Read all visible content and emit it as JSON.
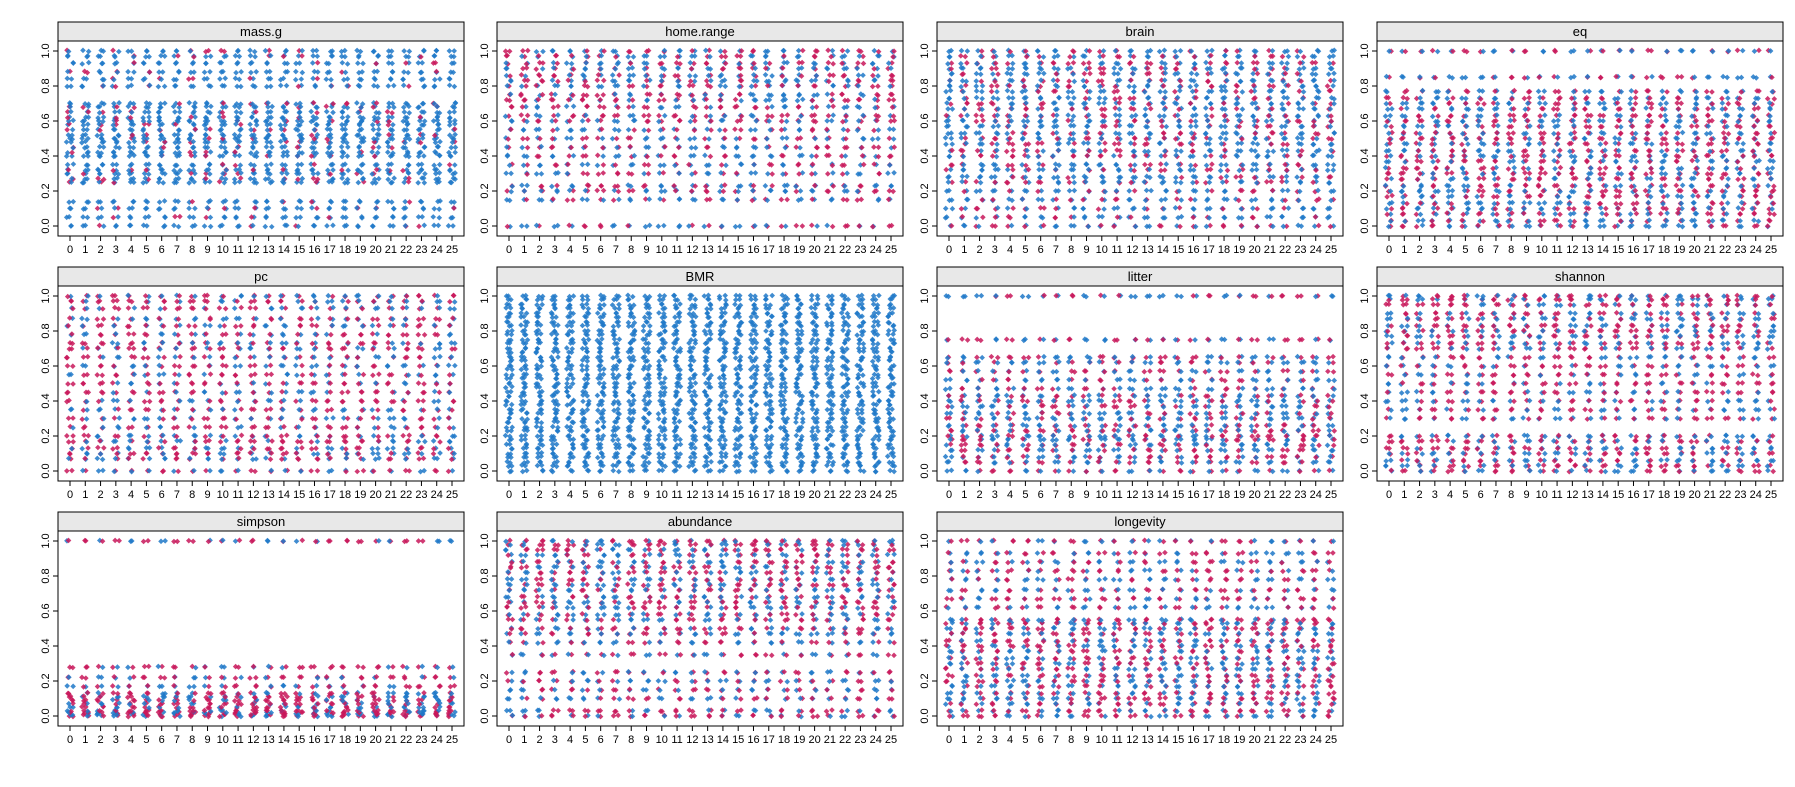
{
  "colors": {
    "background": "#ffffff",
    "strip": "#e8e8e8",
    "blue_points": "#1f78c8",
    "red_points": "#c8185a"
  },
  "chart_data": {
    "type": "scatter",
    "layout": "lattice stripplot, 3 rows x 4 columns (11 panels)",
    "xlabel": "",
    "ylabel": "",
    "x_categories": [
      "0",
      "1",
      "2",
      "3",
      "4",
      "5",
      "6",
      "7",
      "8",
      "9",
      "10",
      "11",
      "12",
      "13",
      "14",
      "15",
      "16",
      "17",
      "18",
      "19",
      "20",
      "21",
      "22",
      "23",
      "24",
      "25"
    ],
    "y_ticks": [
      "0.0",
      "0.2",
      "0.4",
      "0.6",
      "0.8",
      "1.0"
    ],
    "ylim": [
      0,
      1
    ],
    "grid": false,
    "legend": "none",
    "panels": [
      {
        "title": "mass.g",
        "levels": [
          0,
          0.05,
          0.1,
          0.14,
          0.25,
          0.27,
          0.3,
          0.32,
          0.35,
          0.4,
          0.42,
          0.45,
          0.48,
          0.5,
          0.52,
          0.55,
          0.58,
          0.6,
          0.62,
          0.65,
          0.68,
          0.7,
          0.8,
          0.84,
          0.88,
          0.93,
          0.97,
          1.0
        ],
        "red_share": 0.15
      },
      {
        "title": "home.range",
        "levels": [
          0,
          0.15,
          0.2,
          0.23,
          0.3,
          0.35,
          0.4,
          0.45,
          0.5,
          0.55,
          0.6,
          0.63,
          0.68,
          0.72,
          0.75,
          0.8,
          0.83,
          0.86,
          0.9,
          0.93,
          0.97,
          1.0
        ],
        "red_share": 0.5
      },
      {
        "title": "brain",
        "levels": [
          0,
          0.05,
          0.1,
          0.15,
          0.2,
          0.25,
          0.28,
          0.32,
          0.35,
          0.4,
          0.43,
          0.47,
          0.5,
          0.53,
          0.57,
          0.6,
          0.63,
          0.67,
          0.7,
          0.73,
          0.77,
          0.8,
          0.83,
          0.87,
          0.9,
          0.93,
          0.97,
          1.0
        ],
        "red_share": 0.35
      },
      {
        "title": "eq",
        "levels": [
          0,
          0.03,
          0.07,
          0.1,
          0.13,
          0.17,
          0.2,
          0.23,
          0.27,
          0.3,
          0.33,
          0.37,
          0.4,
          0.43,
          0.47,
          0.5,
          0.53,
          0.57,
          0.6,
          0.63,
          0.67,
          0.7,
          0.73,
          0.77,
          0.85,
          1.0
        ],
        "red_share": 0.5
      },
      {
        "title": "pc",
        "levels": [
          0,
          0.07,
          0.1,
          0.13,
          0.17,
          0.2,
          0.25,
          0.3,
          0.35,
          0.4,
          0.45,
          0.5,
          0.55,
          0.6,
          0.65,
          0.7,
          0.73,
          0.78,
          0.83,
          0.87,
          0.93,
          0.97,
          1.0
        ],
        "red_share": 0.55
      },
      {
        "title": "BMR",
        "levels": [
          0,
          0.03,
          0.05,
          0.08,
          0.1,
          0.13,
          0.15,
          0.18,
          0.2,
          0.23,
          0.25,
          0.28,
          0.3,
          0.33,
          0.35,
          0.38,
          0.4,
          0.43,
          0.45,
          0.48,
          0.5,
          0.53,
          0.55,
          0.58,
          0.6,
          0.63,
          0.65,
          0.68,
          0.7,
          0.73,
          0.75,
          0.78,
          0.8,
          0.83,
          0.85,
          0.88,
          0.9,
          0.93,
          0.95,
          0.98,
          1.0
        ],
        "red_share": 0.0
      },
      {
        "title": "litter",
        "levels": [
          0,
          0.05,
          0.08,
          0.12,
          0.15,
          0.18,
          0.2,
          0.23,
          0.26,
          0.3,
          0.33,
          0.37,
          0.4,
          0.43,
          0.47,
          0.52,
          0.57,
          0.62,
          0.65,
          0.75,
          1.0
        ],
        "red_share": 0.45
      },
      {
        "title": "shannon",
        "levels": [
          0,
          0.03,
          0.06,
          0.1,
          0.13,
          0.17,
          0.2,
          0.3,
          0.35,
          0.4,
          0.45,
          0.5,
          0.55,
          0.6,
          0.65,
          0.7,
          0.73,
          0.77,
          0.8,
          0.83,
          0.87,
          0.9,
          0.95,
          0.98,
          1.0
        ],
        "red_share": 0.55
      },
      {
        "title": "simpson",
        "levels": [
          0,
          0.01,
          0.02,
          0.03,
          0.05,
          0.07,
          0.09,
          0.11,
          0.13,
          0.17,
          0.22,
          0.28,
          1.0
        ],
        "red_share": 0.6
      },
      {
        "title": "abundance",
        "levels": [
          0,
          0.03,
          0.1,
          0.15,
          0.2,
          0.25,
          0.35,
          0.42,
          0.47,
          0.5,
          0.55,
          0.58,
          0.62,
          0.65,
          0.68,
          0.72,
          0.75,
          0.78,
          0.82,
          0.85,
          0.88,
          0.92,
          0.95,
          0.98,
          1.0
        ],
        "red_share": 0.5
      },
      {
        "title": "longevity",
        "levels": [
          0,
          0.03,
          0.07,
          0.1,
          0.13,
          0.17,
          0.2,
          0.23,
          0.27,
          0.3,
          0.33,
          0.37,
          0.4,
          0.43,
          0.47,
          0.5,
          0.53,
          0.55,
          0.62,
          0.67,
          0.72,
          0.78,
          0.83,
          0.88,
          0.93,
          1.0
        ],
        "red_share": 0.55
      }
    ]
  }
}
